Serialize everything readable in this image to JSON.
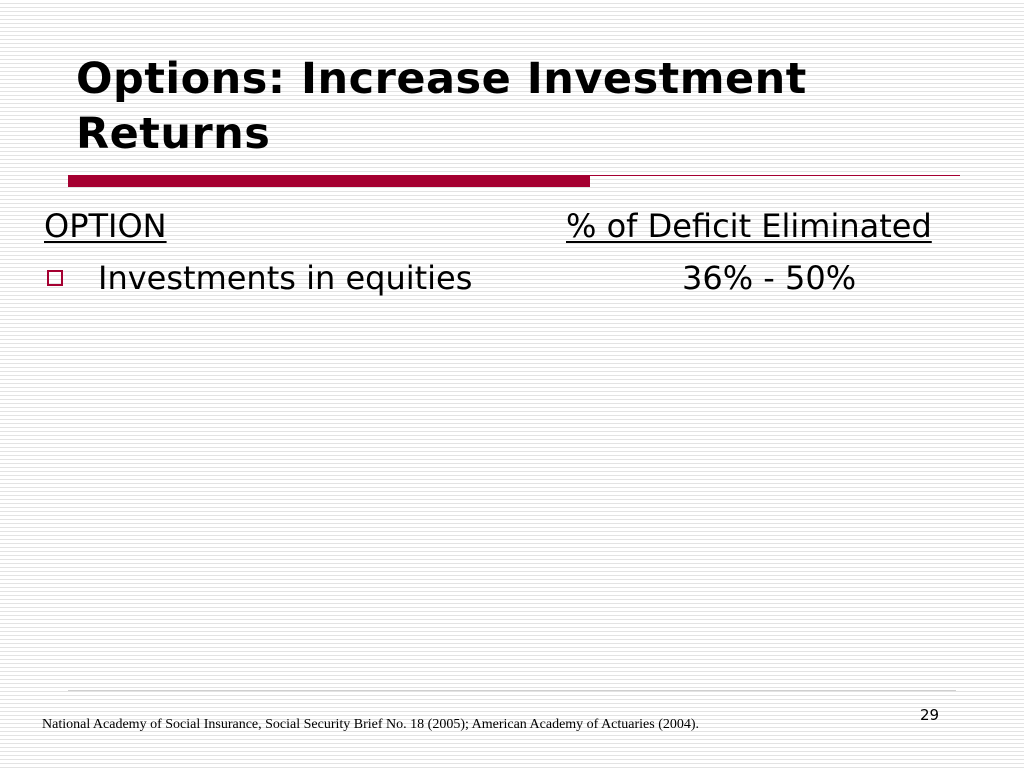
{
  "slide": {
    "title": "Options:  Increase Investment Returns",
    "accent_color": "#a50031"
  },
  "table": {
    "header_option": "OPTION",
    "header_percent": "% of Deficit Eliminated",
    "rows": [
      {
        "option": "Investments in equities",
        "percent": "36% - 50%"
      }
    ]
  },
  "footer": {
    "source": "National Academy of Social Insurance, Social Security Brief No. 18 (2005); American Academy of Actuaries (2004).",
    "page_number": "29"
  }
}
